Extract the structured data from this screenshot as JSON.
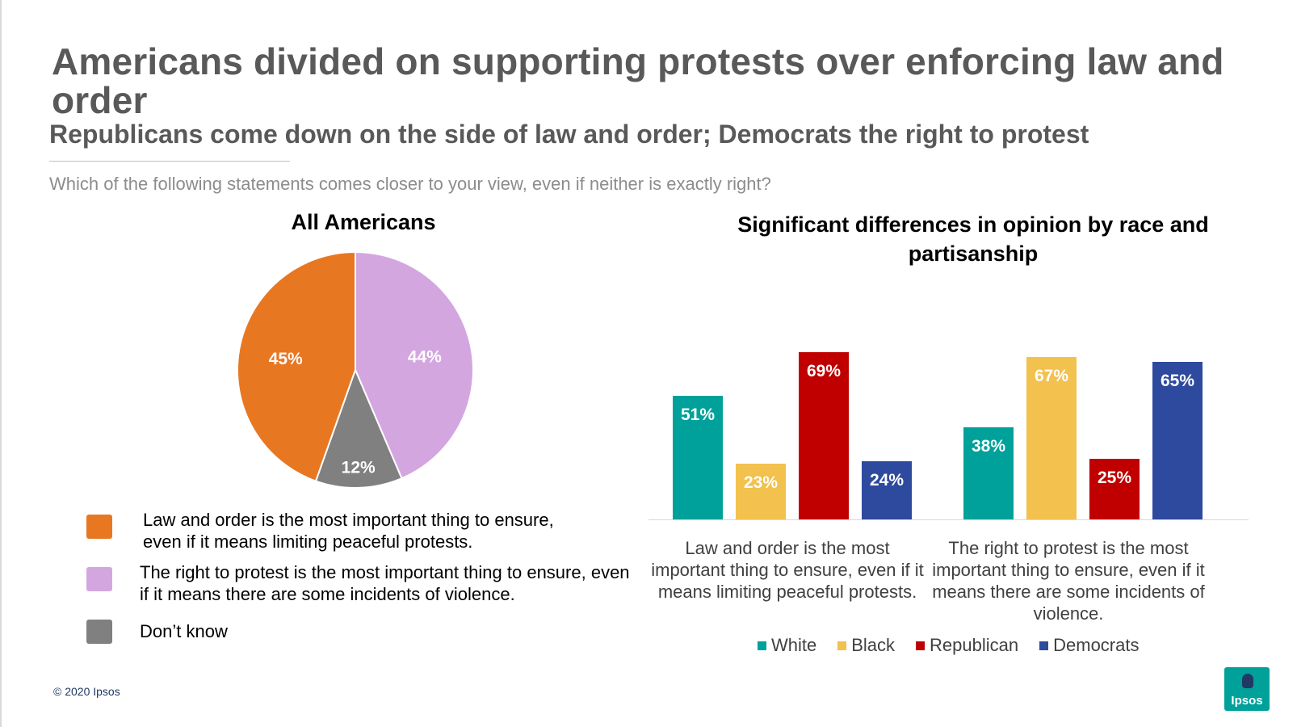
{
  "header": {
    "title": "Americans divided on supporting protests over enforcing law and order",
    "subtitle": "Republicans come down on the side of law and order; Democrats the right to protest",
    "question": "Which of the following statements comes closer to your view, even if neither is exactly right?"
  },
  "colors": {
    "law": "#e87722",
    "protest": "#d4a6e0",
    "dontknow": "#808080",
    "white": "#00a19a",
    "black": "#f2c14e",
    "republican": "#c00000",
    "democrats": "#2e4a9e"
  },
  "pie": {
    "title": "All Americans",
    "legend": [
      "Law and order is the most important thing to ensure, even if it means limiting peaceful protests.",
      "The right to protest is the most important thing to ensure, even if it means there are some incidents of violence.",
      "Don’t know"
    ]
  },
  "bar": {
    "title": "Significant differences in opinion by race and partisanship"
  },
  "chart_data": [
    {
      "type": "pie",
      "title": "All Americans",
      "labels": [
        "Law and order is the most important thing to ensure, even if it means limiting peaceful protests.",
        "The right to protest is the most important thing to ensure, even if it means there are some incidents of violence.",
        "Don’t know"
      ],
      "values": [
        45,
        44,
        12
      ],
      "value_labels": [
        "45%",
        "44%",
        "12%"
      ]
    },
    {
      "type": "bar",
      "title": "Significant differences in opinion by race and partisanship",
      "categories": [
        "Law and order is the most important thing to ensure, even if it means limiting peaceful protests.",
        "The right to protest is the most important thing to ensure, even if it means there are some incidents of violence."
      ],
      "series": [
        {
          "name": "White",
          "values": [
            51,
            38
          ],
          "labels": [
            "51%",
            "38%"
          ]
        },
        {
          "name": "Black",
          "values": [
            23,
            67
          ],
          "labels": [
            "23%",
            "67%"
          ]
        },
        {
          "name": "Republican",
          "values": [
            69,
            25
          ],
          "labels": [
            "69%",
            "25%"
          ]
        },
        {
          "name": "Democrats",
          "values": [
            24,
            65
          ],
          "labels": [
            "24%",
            "65%"
          ]
        }
      ],
      "ylim": [
        0,
        69
      ],
      "legend_position": "bottom"
    }
  ],
  "footer": {
    "copyright": "© 2020 Ipsos",
    "logo_text": "Ipsos"
  }
}
